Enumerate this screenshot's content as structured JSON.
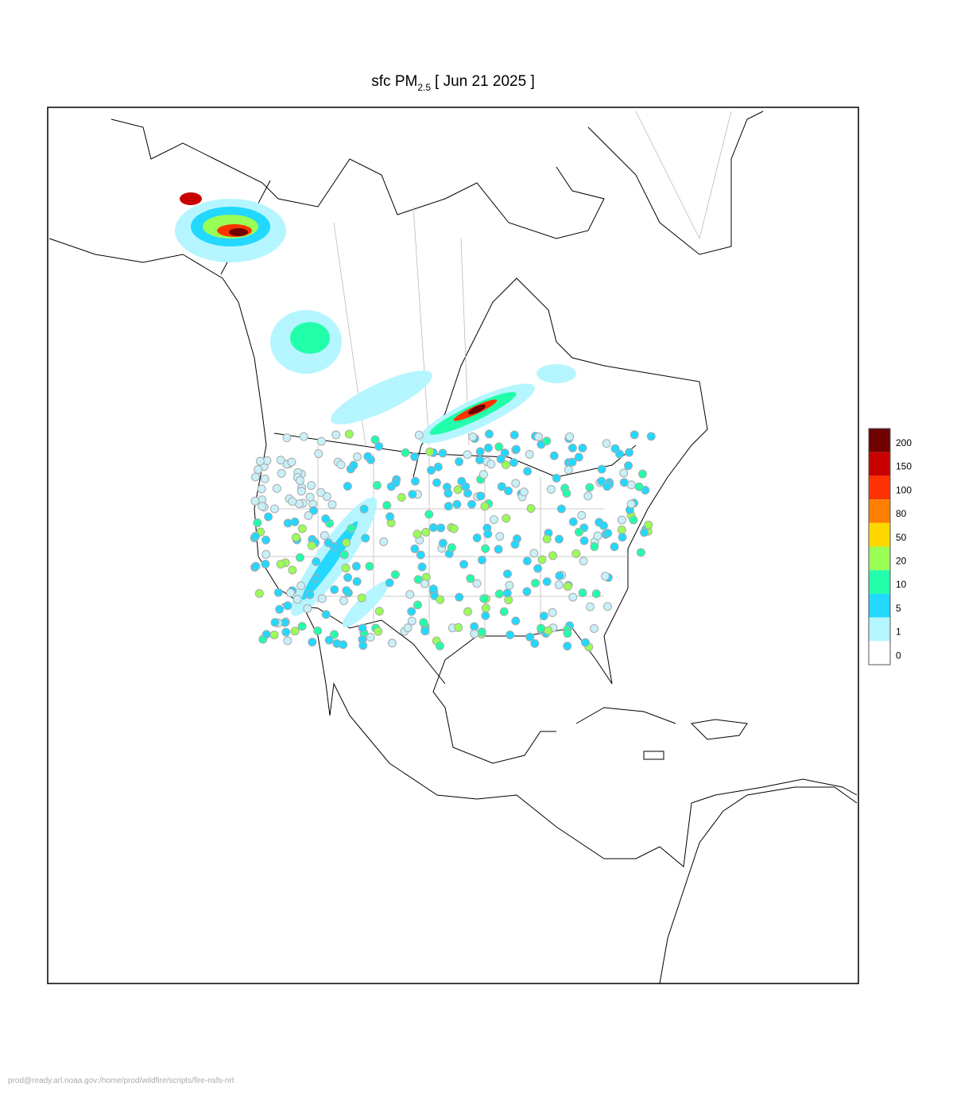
{
  "header": {
    "title_main": "sfc PM",
    "title_subscript": "2.5",
    "title_date": "[ Jun 21 2025 ]"
  },
  "legend": {
    "levels": [
      {
        "value": 200,
        "color": "#6e0000"
      },
      {
        "value": 150,
        "color": "#c80000"
      },
      {
        "value": 100,
        "color": "#ff3300"
      },
      {
        "value": 80,
        "color": "#ff8000"
      },
      {
        "value": 50,
        "color": "#ffd700"
      },
      {
        "value": 20,
        "color": "#99ff55"
      },
      {
        "value": 10,
        "color": "#22ffaa"
      },
      {
        "value": 5,
        "color": "#22d8ff"
      },
      {
        "value": 1,
        "color": "#b5f5ff"
      },
      {
        "value": 0,
        "color": "#ffffff"
      }
    ]
  },
  "footer": {
    "path": "prod@ready.arl.noaa.gov:/home/prod/wildfire/scripts/fire-nsfs-nrt"
  }
}
